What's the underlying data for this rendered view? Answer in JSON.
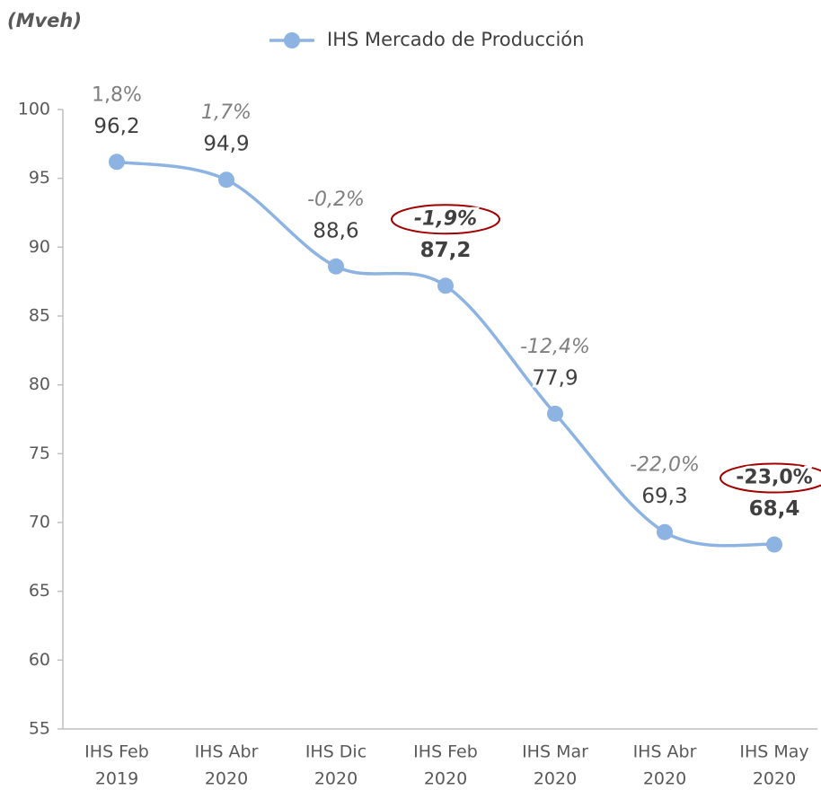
{
  "chart_data": {
    "type": "line",
    "y_axis_label": "(Mveh)",
    "categories": [
      [
        "IHS Feb",
        "2019"
      ],
      [
        "IHS Abr",
        "2020"
      ],
      [
        "IHS Dic",
        "2020"
      ],
      [
        "IHS Feb",
        "2020"
      ],
      [
        "IHS Mar",
        "2020"
      ],
      [
        "IHS Abr",
        "2020"
      ],
      [
        "IHS May",
        "2020"
      ]
    ],
    "series": [
      {
        "name": "IHS Mercado de Producción",
        "color": "#8db3e2",
        "values": [
          96.2,
          94.9,
          88.6,
          87.2,
          77.9,
          69.3,
          68.4
        ],
        "value_labels": [
          "96,2",
          "94,9",
          "88,6",
          "87,2",
          "77,9",
          "69,3",
          "68,4"
        ],
        "annotations": [
          "1,8%",
          "1,7%",
          "-0,2%",
          "-1,9%",
          "-12,4%",
          "-22,0%",
          "-23,0%"
        ],
        "highlighted": [
          false,
          false,
          false,
          true,
          false,
          false,
          true
        ]
      }
    ],
    "ylim": [
      55,
      100
    ],
    "yticks": [
      55,
      60,
      65,
      70,
      75,
      80,
      85,
      90,
      95,
      100
    ],
    "grid": false,
    "smooth": true,
    "legend": "top"
  }
}
